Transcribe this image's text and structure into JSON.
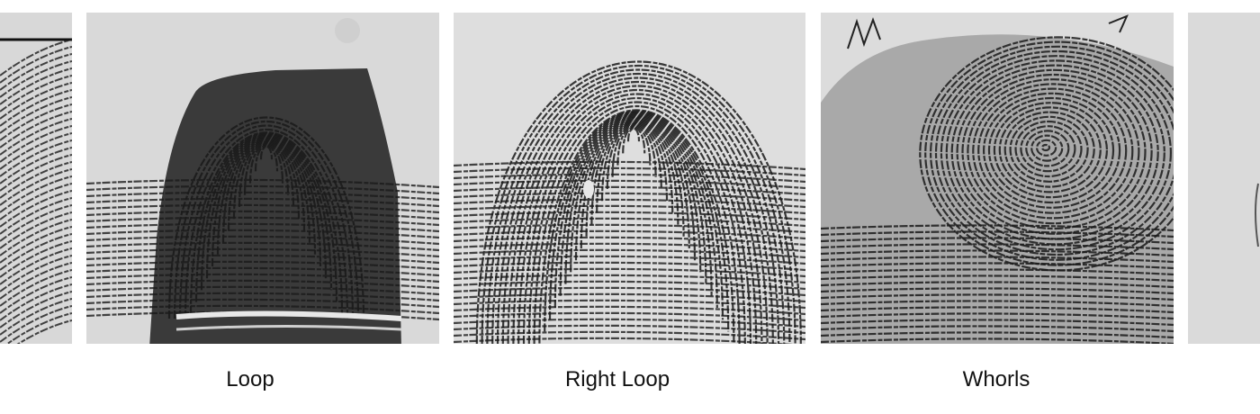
{
  "captions": {
    "loop": "Loop",
    "right_loop": "Right Loop",
    "whorls": "Whorls"
  },
  "colors": {
    "background": "#ffffff",
    "card_background": "#dcdcdc",
    "ridge": "#1a1a1a",
    "text": "#111111"
  },
  "images": [
    {
      "name": "partial-fingerprint-left",
      "pattern": "loop"
    },
    {
      "name": "fingerprint-loop",
      "pattern": "loop"
    },
    {
      "name": "fingerprint-right-loop",
      "pattern": "right-loop"
    },
    {
      "name": "fingerprint-whorl",
      "pattern": "whorl"
    },
    {
      "name": "partial-fingerprint-right",
      "pattern": "blank"
    }
  ]
}
